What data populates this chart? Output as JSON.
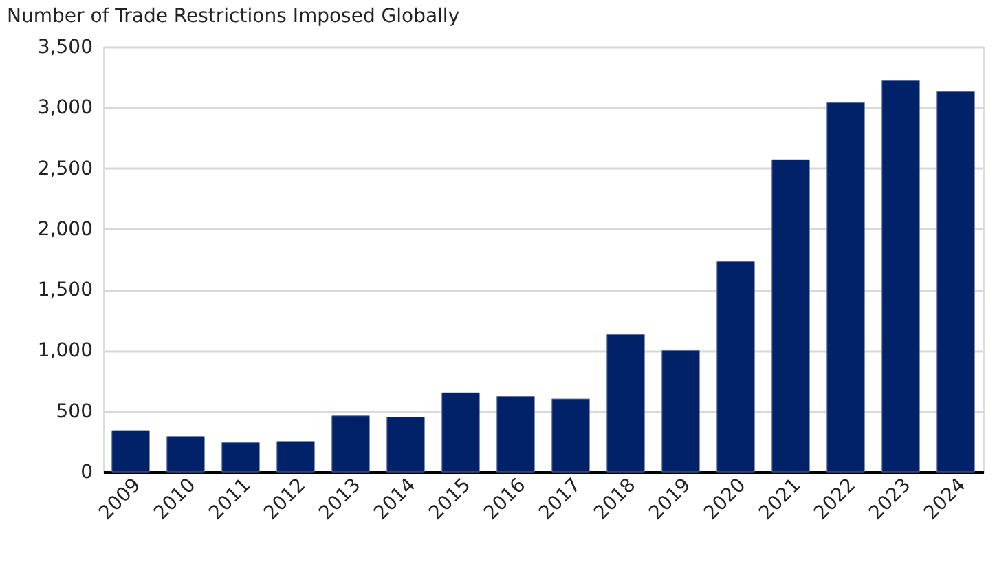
{
  "chart_data": {
    "type": "bar",
    "title": "Number of Trade Restrictions Imposed Globally",
    "categories": [
      "2009",
      "2010",
      "2011",
      "2012",
      "2013",
      "2014",
      "2015",
      "2016",
      "2017",
      "2018",
      "2019",
      "2020",
      "2021",
      "2022",
      "2023",
      "2024"
    ],
    "values": [
      340,
      290,
      240,
      250,
      460,
      450,
      650,
      620,
      600,
      1130,
      1000,
      1730,
      2570,
      3040,
      3220,
      3130
    ],
    "color": "#012169",
    "ylim": [
      0,
      3500
    ],
    "yticks": [
      {
        "value": 0,
        "label": "0"
      },
      {
        "value": 500,
        "label": "500"
      },
      {
        "value": 1000,
        "label": "1,000"
      },
      {
        "value": 1500,
        "label": "1,500"
      },
      {
        "value": 2000,
        "label": "2,000"
      },
      {
        "value": 2500,
        "label": "2,500"
      },
      {
        "value": 3000,
        "label": "3,000"
      },
      {
        "value": 3500,
        "label": "3,500"
      }
    ],
    "grid": "y"
  }
}
